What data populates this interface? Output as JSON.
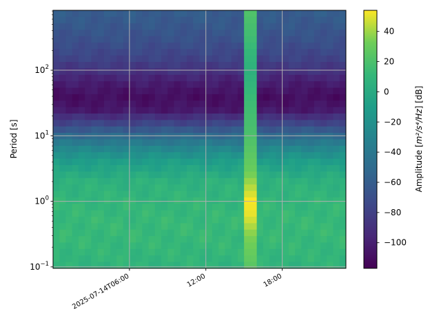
{
  "chart_data": {
    "type": "heatmap",
    "title": "",
    "xlabel": "",
    "ylabel": "Period [s]",
    "x_ticks": [
      {
        "time": "2025-07-14T06:00",
        "label": "2025-07-14T06:00"
      },
      {
        "time": "2025-07-14T12:00",
        "label": "12:00"
      },
      {
        "time": "2025-07-14T18:00",
        "label": "18:00"
      }
    ],
    "x_range": [
      "2025-07-14T00:00",
      "2025-07-14T23:00"
    ],
    "y_scale": "log",
    "y_range": [
      0.095,
      820
    ],
    "y_ticks": [
      {
        "value": 0.1,
        "base": "10",
        "exp": "−1"
      },
      {
        "value": 1,
        "base": "10",
        "exp": "0"
      },
      {
        "value": 10,
        "base": "10",
        "exp": "1"
      },
      {
        "value": 100,
        "base": "10",
        "exp": "2"
      }
    ],
    "grid": true,
    "colormap": "viridis",
    "colorbar": {
      "label_prefix": "Amplitude [",
      "label_unit": "m²/s⁴/Hz",
      "label_suffix": "] [dB]",
      "range": [
        -117,
        54
      ],
      "ticks": [
        40,
        20,
        0,
        -20,
        -40,
        -60,
        -80,
        -100
      ]
    },
    "profile": {
      "periods": [
        0.1,
        0.15,
        0.3,
        0.5,
        1,
        2,
        4,
        6,
        10,
        15,
        25,
        40,
        70,
        100,
        150,
        300,
        600,
        820
      ],
      "amplitude_db": [
        8,
        10,
        12,
        12,
        10,
        6,
        -10,
        -25,
        -50,
        -75,
        -105,
        -110,
        -100,
        -88,
        -78,
        -68,
        -62,
        -60
      ]
    },
    "event": {
      "start": "2025-07-14T15:00",
      "end": "2025-07-14T16:00",
      "periods": [
        0.1,
        0.3,
        0.6,
        1,
        1.5,
        3,
        10,
        30,
        100,
        300,
        820
      ],
      "amplitude_db": [
        25,
        35,
        50,
        54,
        45,
        30,
        20,
        15,
        5,
        15,
        22
      ]
    }
  }
}
